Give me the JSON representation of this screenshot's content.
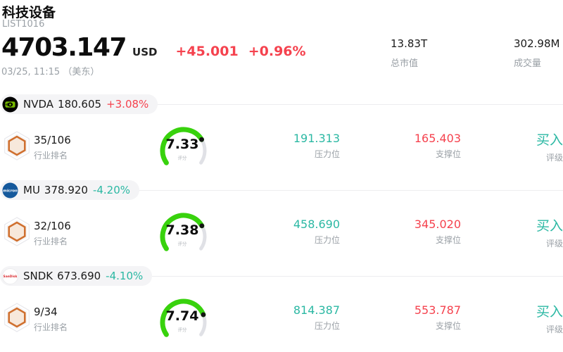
{
  "header": {
    "title": "科技设备",
    "subtitle": "LIST1016",
    "price": "4703.147",
    "currency": "USD",
    "change": "+45.001",
    "change_pct": "+0.96%",
    "timestamp": "03/25, 11:15 （美东）",
    "market_cap": {
      "value": "13.83T",
      "label": "总市值"
    },
    "volume": {
      "value": "302.98M",
      "label": "成交量"
    }
  },
  "labels": {
    "rank": "行业排名",
    "score": "评分",
    "resistance": "压力位",
    "support": "支撑位",
    "rating": "评级"
  },
  "rows": [
    {
      "symbol": "NVDA",
      "price": "180.605",
      "change_pct": "+3.08%",
      "direction": "up",
      "logo": "nvidia-logo",
      "rank": "35/106",
      "score": "7.33",
      "resistance": "191.313",
      "support": "165.403",
      "rating": "买入"
    },
    {
      "symbol": "MU",
      "price": "378.920",
      "change_pct": "-4.20%",
      "direction": "down",
      "logo": "micron-logo",
      "rank": "32/106",
      "score": "7.38",
      "resistance": "458.690",
      "support": "345.020",
      "rating": "买入"
    },
    {
      "symbol": "SNDK",
      "price": "673.690",
      "change_pct": "-4.10%",
      "direction": "down",
      "logo": "sandisk-logo",
      "rank": "9/34",
      "score": "7.74",
      "resistance": "814.387",
      "support": "553.787",
      "rating": "买入"
    }
  ],
  "colors": {
    "up": "#f5424e",
    "down": "#2bb8a3",
    "gauge_fill": "#38d20d",
    "gauge_rest": "#e0e1e6"
  }
}
